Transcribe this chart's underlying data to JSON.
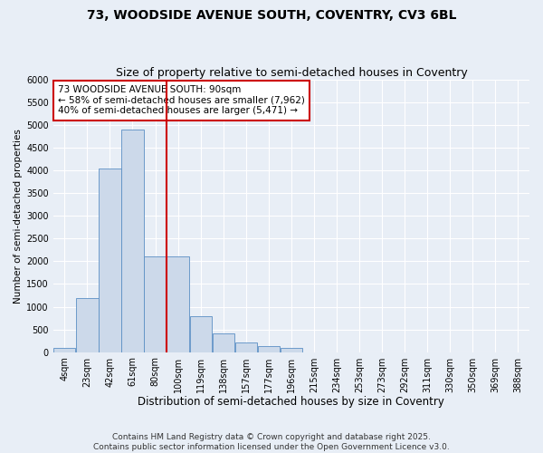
{
  "title1": "73, WOODSIDE AVENUE SOUTH, COVENTRY, CV3 6BL",
  "title2": "Size of property relative to semi-detached houses in Coventry",
  "xlabel": "Distribution of semi-detached houses by size in Coventry",
  "ylabel": "Number of semi-detached properties",
  "annotation_line1": "73 WOODSIDE AVENUE SOUTH: 90sqm",
  "annotation_line2": "← 58% of semi-detached houses are smaller (7,962)",
  "annotation_line3": "40% of semi-detached houses are larger (5,471) →",
  "footer1": "Contains HM Land Registry data © Crown copyright and database right 2025.",
  "footer2": "Contains public sector information licensed under the Open Government Licence v3.0.",
  "bin_labels": [
    "4sqm",
    "23sqm",
    "42sqm",
    "61sqm",
    "80sqm",
    "100sqm",
    "119sqm",
    "138sqm",
    "157sqm",
    "177sqm",
    "196sqm",
    "215sqm",
    "234sqm",
    "253sqm",
    "273sqm",
    "292sqm",
    "311sqm",
    "330sqm",
    "350sqm",
    "369sqm",
    "388sqm"
  ],
  "bar_values": [
    90,
    1200,
    4050,
    4900,
    2100,
    2100,
    800,
    420,
    220,
    130,
    85,
    0,
    0,
    0,
    0,
    0,
    0,
    0,
    0,
    0,
    0
  ],
  "vline_index": 4.5,
  "bar_color": "#ccd9ea",
  "bar_edge_color": "#5b8fc4",
  "vline_color": "#cc0000",
  "annotation_box_color": "#cc0000",
  "background_color": "#e8eef6",
  "plot_bg_color": "#e8eef6",
  "ylim": [
    0,
    6000
  ],
  "yticks": [
    0,
    500,
    1000,
    1500,
    2000,
    2500,
    3000,
    3500,
    4000,
    4500,
    5000,
    5500,
    6000
  ],
  "grid_color": "#ffffff",
  "title1_fontsize": 10,
  "title2_fontsize": 9,
  "xlabel_fontsize": 8.5,
  "ylabel_fontsize": 7.5,
  "tick_fontsize": 7,
  "annot_fontsize": 7.5,
  "footer_fontsize": 6.5
}
